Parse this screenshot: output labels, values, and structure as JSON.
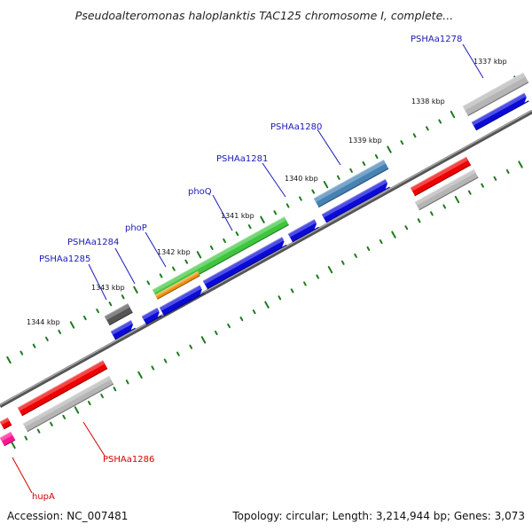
{
  "title": "Pseudoalteromonas haloplanktis TAC125 chromosome I, complete...",
  "footer": {
    "accession": "Accession: NC_007481",
    "summary": "Topology: circular; Length: 3,214,944 bp; Genes: 3,073"
  },
  "scale_labels": [
    "1337 kbp",
    "1338 kbp",
    "1339 kbp",
    "1340 kbp",
    "1341 kbp",
    "1342 kbp",
    "1343 kbp",
    "1344 kbp"
  ],
  "genes_forward": [
    {
      "label": "PSHAa1278",
      "color": "#1a1ab8"
    },
    {
      "label": "PSHAa1280",
      "color": "#1a1ab8"
    },
    {
      "label": "PSHAa1281",
      "color": "#1a1ab8"
    },
    {
      "label": "phoQ",
      "color": "#1a1ab8"
    },
    {
      "label": "phoP",
      "color": "#1a1ab8"
    },
    {
      "label": "PSHAa1284",
      "color": "#1a1ab8"
    },
    {
      "label": "PSHAa1285",
      "color": "#1a1ab8"
    }
  ],
  "genes_reverse": [
    {
      "label": "PSHAa1286",
      "color": "#d40000"
    },
    {
      "label": "hupA",
      "color": "#d40000"
    }
  ],
  "colors": {
    "backbone": "#7a7a7a",
    "tick": "#1f7a1f",
    "cds_blue": "#0a0ad8",
    "gene_red": "#ee0000",
    "gene_grey": "#b5b5b5",
    "gene_green": "#3ec63e",
    "gene_orange": "#f09010",
    "gene_steel": "#4682b4",
    "gene_dark": "#555555",
    "gene_pink": "#ff1493"
  }
}
